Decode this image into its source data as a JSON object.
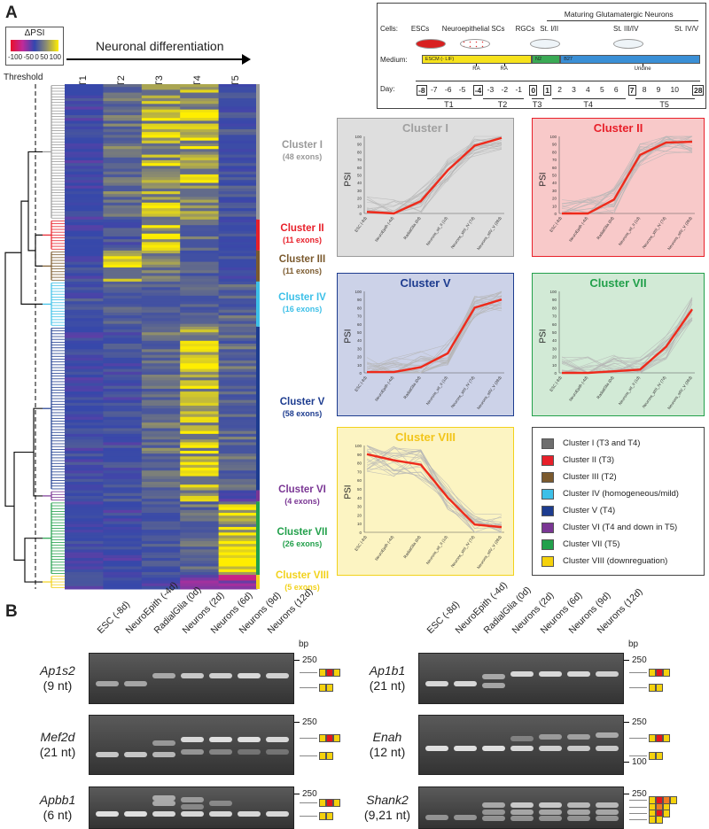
{
  "panel_a": {
    "letter": "A",
    "scale": {
      "title": "ΔPSI",
      "ticks": [
        "-100",
        "-50",
        "0",
        "50",
        "100"
      ]
    },
    "axis_title": "Neuronal differentiation",
    "threshold_label": "Threshold",
    "columns": [
      "T1",
      "T2",
      "T3",
      "T4",
      "T5"
    ],
    "clusters": [
      {
        "name": "Cluster I",
        "count": "(48 exons)",
        "rows": 48,
        "color": "#9b9b9b",
        "profile": [
          0,
          40,
          85,
          85,
          10
        ]
      },
      {
        "name": "Cluster II",
        "count": "(11 exons)",
        "rows": 11,
        "color": "#e8202a",
        "profile": [
          0,
          10,
          100,
          30,
          5
        ]
      },
      {
        "name": "Cluster III",
        "count": "(11 exons)",
        "rows": 11,
        "color": "#7b5a2e",
        "profile": [
          0,
          85,
          60,
          20,
          5
        ]
      },
      {
        "name": "Cluster IV",
        "count": "(16 exons)",
        "rows": 16,
        "color": "#3dc0e8",
        "profile": [
          12,
          20,
          22,
          20,
          25
        ]
      },
      {
        "name": "Cluster V",
        "count": "(58 exons)",
        "rows": 58,
        "color": "#1d3c8f",
        "profile": [
          0,
          5,
          35,
          92,
          30
        ]
      },
      {
        "name": "Cluster VI",
        "count": "(4 exons)",
        "rows": 4,
        "color": "#7a3694",
        "profile": [
          0,
          10,
          20,
          85,
          -10
        ]
      },
      {
        "name": "Cluster VII",
        "count": "(26 exons)",
        "rows": 26,
        "color": "#22a04b",
        "profile": [
          0,
          0,
          10,
          30,
          92
        ]
      },
      {
        "name": "Cluster VIII",
        "count": "(5 exons)",
        "rows": 5,
        "color": "#f2d21b",
        "profile": [
          0,
          0,
          -5,
          -30,
          -60
        ]
      }
    ],
    "schematic": {
      "cells_label": "Cells:",
      "medium_label": "Medium:",
      "day_label": "Day:",
      "stages": [
        "ESCs",
        "Neuroepithelial SCs",
        "RGCs",
        "St. I/II",
        "St. III/IV",
        "St. IV/V"
      ],
      "maturing": "Maturing Glutamatergic Neurons",
      "media": [
        "ESCM (- LIF)",
        "N2",
        "B27"
      ],
      "arrows": [
        "RA",
        "RA",
        "Uridine"
      ],
      "days": [
        "-8",
        "-7",
        "-6",
        "-5",
        "-4",
        "-3",
        "-2",
        "-1",
        "0",
        "1",
        "2",
        "3",
        "4",
        "5",
        "6",
        "7",
        "8",
        "9",
        "10",
        "28"
      ],
      "boxed_days": [
        "-8",
        "-4",
        "0",
        "1",
        "7",
        "28"
      ],
      "periods": [
        "T1",
        "T2",
        "T3",
        "T4",
        "T5"
      ]
    },
    "plot_axis": {
      "ylabel": "PSI",
      "yticks": [
        0,
        10,
        20,
        30,
        40,
        50,
        60,
        70,
        80,
        90,
        100
      ],
      "xlabels": [
        "ESC (-8d)",
        "NeuroEpith (-4d)",
        "RadialGlia (0d)",
        "Neurons_stI_II (1d)",
        "Neurons_stIII_IV (7d)",
        "Neurons_stIV_V (28d)"
      ]
    },
    "plots": [
      {
        "title": "Cluster I",
        "color": "#9b9b9b",
        "bg": "#dedede",
        "border": "#9a9a9a",
        "mean": [
          2,
          0,
          16,
          56,
          88,
          98
        ]
      },
      {
        "title": "Cluster II",
        "color": "#e8202a",
        "bg": "#f8c9c9",
        "border": "#e8202a",
        "mean": [
          0,
          0,
          18,
          76,
          92,
          93
        ]
      },
      {
        "title": "Cluster V",
        "color": "#1d3c8f",
        "bg": "#ccd2e8",
        "border": "#1d3c8f",
        "mean": [
          1,
          1,
          7,
          24,
          80,
          90
        ]
      },
      {
        "title": "Cluster VII",
        "color": "#22a04b",
        "bg": "#d2ead6",
        "border": "#22a04b",
        "mean": [
          0,
          0,
          2,
          4,
          32,
          78
        ]
      },
      {
        "title": "Cluster VIII",
        "color": "#f2c51b",
        "bg": "#fcf4c2",
        "border": "#f2d21b",
        "mean": [
          90,
          83,
          78,
          40,
          9,
          6
        ]
      }
    ],
    "legend": [
      {
        "label": "Cluster I (T3 and T4)",
        "color": "#6e6e6e"
      },
      {
        "label": "Cluster II (T3)",
        "color": "#e8202a"
      },
      {
        "label": "Cluster III (T2)",
        "color": "#7b5a2e"
      },
      {
        "label": "Cluster IV (homogeneous/mild)",
        "color": "#3dc0e8"
      },
      {
        "label": "Cluster V (T4)",
        "color": "#1d3c8f"
      },
      {
        "label": "Cluster VI (T4 and down in T5)",
        "color": "#7a3694"
      },
      {
        "label": "Cluster VII (T5)",
        "color": "#22a04b"
      },
      {
        "label": "Cluster VIII (downreguation)",
        "color": "#f5d20c"
      }
    ]
  },
  "panel_b": {
    "letter": "B",
    "bp_label": "bp",
    "lanes": [
      "ESC (-8d)",
      "NeuroEpith (-4d)",
      "RadialGlia (0d)",
      "Neurons (2d)",
      "Neurons (6d)",
      "Neurons (9d)",
      "Neurons (12d)"
    ],
    "gels": [
      {
        "gene": "Ap1s2",
        "nt": "(9 nt)",
        "markers": [
          "250"
        ]
      },
      {
        "gene": "Mef2d",
        "nt": "(21 nt)",
        "markers": [
          "250"
        ]
      },
      {
        "gene": "Apbb1",
        "nt": "(6 nt)",
        "markers": [
          "250"
        ]
      },
      {
        "gene": "Ap1b1",
        "nt": "(21 nt)",
        "markers": [
          "250"
        ]
      },
      {
        "gene": "Enah",
        "nt": "(12 nt)",
        "markers": [
          "250",
          "100"
        ]
      },
      {
        "gene": "Shank2",
        "nt": "(9,21 nt)",
        "markers": [
          "250"
        ]
      }
    ]
  }
}
